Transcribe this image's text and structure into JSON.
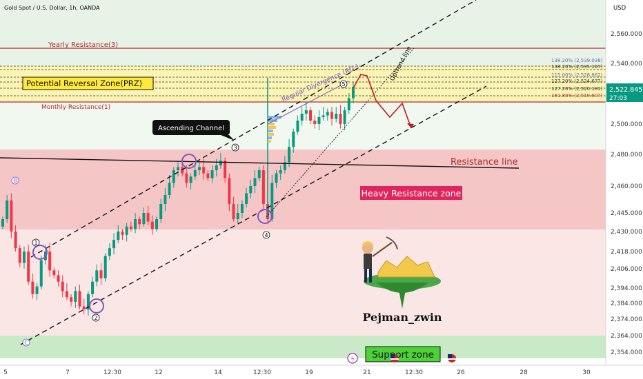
{
  "header": {
    "symbol_line": "Gold Spot / U.S. Dollar, 1h, OANDA",
    "currency": "USD"
  },
  "colors": {
    "up": "#089981",
    "down": "#f23645",
    "accent": "#7e57c2"
  },
  "chart_data": {
    "type": "candlestick",
    "ylim": [
      2345,
      2578
    ],
    "yticks": [
      "2,560.000",
      "2,540.000",
      "2,520.000",
      "2,500.000",
      "2,480.000",
      "2,460.000",
      "2,445.000",
      "2,430.000",
      "2,418.000",
      "2,406.000",
      "2,394.000",
      "2,384.000",
      "2,374.000",
      "2,364.000",
      "2,354.000"
    ],
    "xticks": [
      "5",
      "7",
      "12:30",
      "12",
      "14",
      "12:30",
      "19",
      "21",
      "12:30",
      "26",
      "28",
      "30"
    ],
    "last_price": "2,522.845",
    "countdown": "27:03",
    "fib_labels": [
      "138.20% (2,539.038)",
      "138.20% (2,535.167)",
      "115.00% (2,528.862)",
      "127.20% (2,524.677)",
      "127.20% (2,520.181)",
      "161.80% (2,519.607)"
    ],
    "close_series": [
      2440,
      2452,
      2430,
      2420,
      2410,
      2418,
      2398,
      2390,
      2395,
      2412,
      2418,
      2405,
      2402,
      2398,
      2392,
      2388,
      2385,
      2392,
      2382,
      2380,
      2390,
      2398,
      2405,
      2400,
      2415,
      2420,
      2425,
      2430,
      2428,
      2434,
      2432,
      2440,
      2436,
      2445,
      2438,
      2432,
      2440,
      2450,
      2455,
      2462,
      2470,
      2472,
      2468,
      2462,
      2466,
      2470,
      2472,
      2468,
      2465,
      2470,
      2473,
      2476,
      2465,
      2450,
      2440,
      2445,
      2450,
      2456,
      2460,
      2465,
      2470,
      2450,
      2440,
      2462,
      2468,
      2470,
      2475,
      2485,
      2495,
      2502,
      2506,
      2508,
      2502,
      2500,
      2504,
      2505,
      2507,
      2503,
      2506,
      2500,
      2508,
      2515,
      2522
    ]
  },
  "annotations": {
    "yearly_resistance": "Yearly Resistance(3)",
    "prz": "Potential Reversal Zone(PRZ)",
    "monthly_resistance": "Monthly Resistance(1)",
    "ascending_channel": "Ascending Channel",
    "divergence": "Regular Divergence (RD-)",
    "uptrend_line": "Uptrend line",
    "resistance_line": "Resistance line",
    "heavy_resistance_zone": "Heavy Resistance zone",
    "support_zone": "Support zone",
    "author": "Pejman_zwin",
    "wave_labels": [
      "1",
      "2",
      "3",
      "4",
      "5"
    ],
    "corner_labels": [
      "B",
      "C"
    ]
  }
}
